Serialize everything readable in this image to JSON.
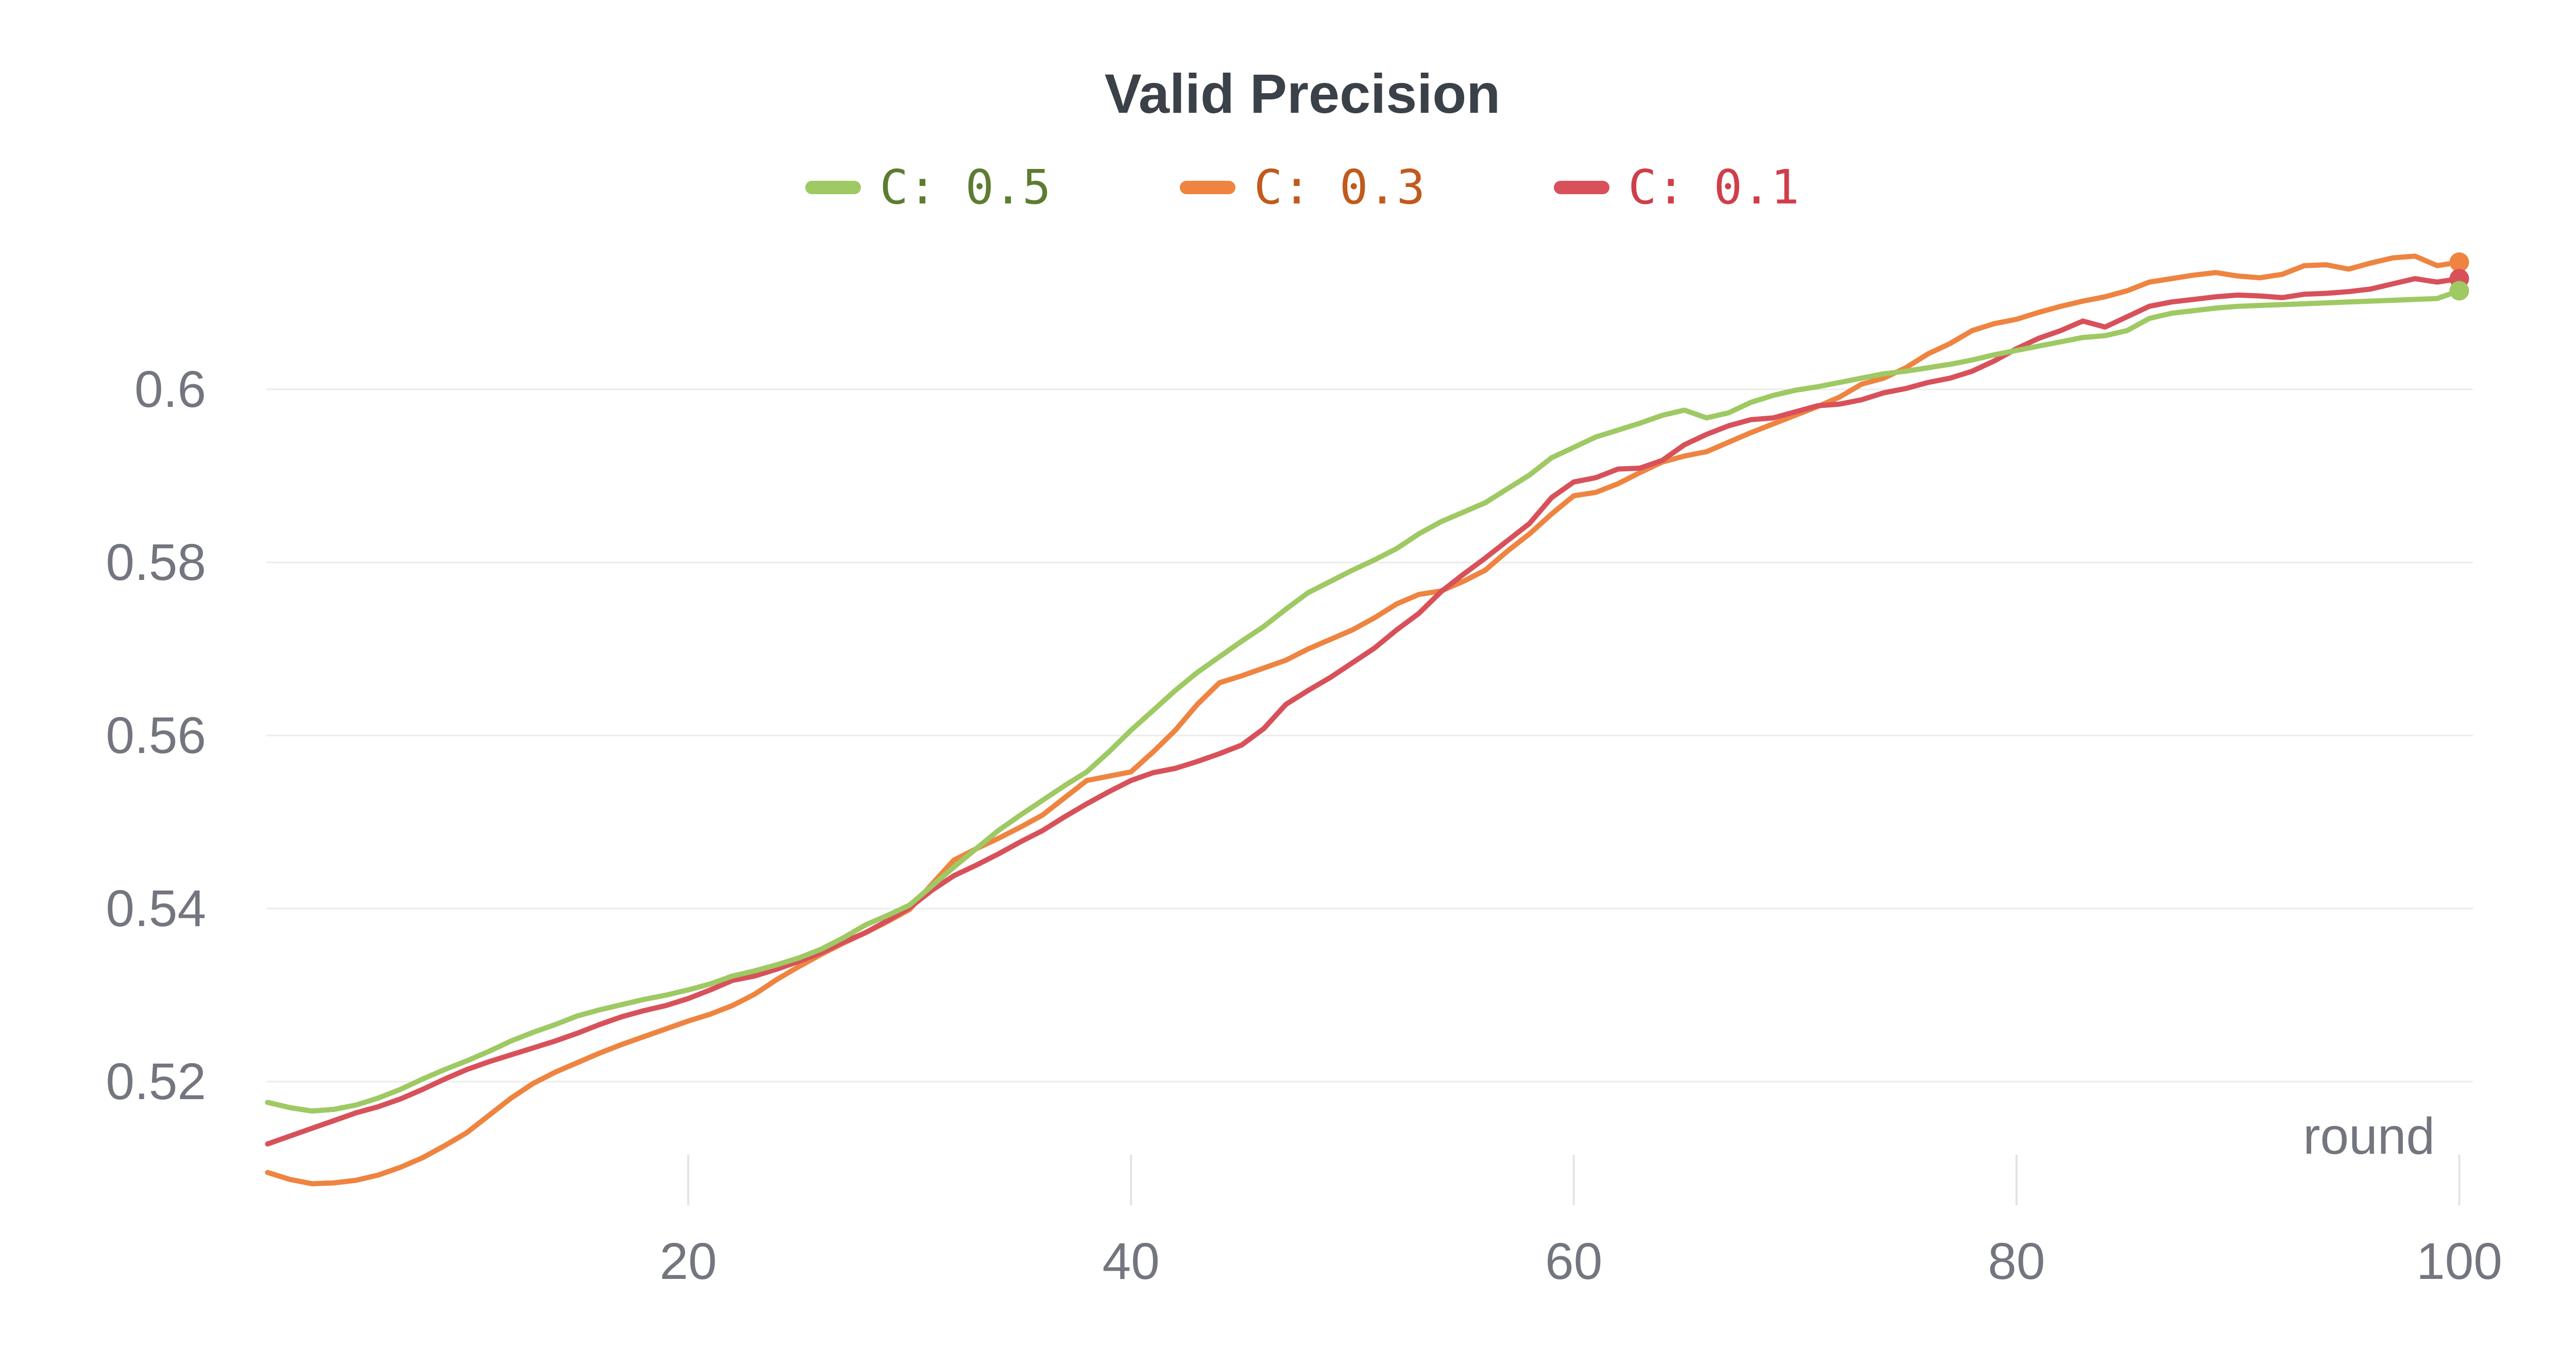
{
  "title": "Valid Precision",
  "colors": {
    "background": "#ffffff",
    "title_text": "#3b4148",
    "axis_text": "#73767f",
    "gridline": "#ececec",
    "tick_mark": "#e3e3e3"
  },
  "chart_data": {
    "type": "line",
    "title": "Valid Precision",
    "xlabel": "round",
    "ylabel": "",
    "grid": "horizontal-only",
    "legend_position": "top-center",
    "x_start": 1,
    "x_step": 1,
    "xlim": [
      1,
      100
    ],
    "ylim": [
      0.506,
      0.619
    ],
    "x_ticks": [
      20,
      40,
      60,
      80,
      100
    ],
    "y_ticks": [
      {
        "label": "0.6",
        "value": 0.6
      },
      {
        "label": "0.58",
        "value": 0.58
      },
      {
        "label": "0.56",
        "value": 0.56
      },
      {
        "label": "0.54",
        "value": 0.54
      },
      {
        "label": "0.52",
        "value": 0.52
      }
    ],
    "end_point_dot": true,
    "series": [
      {
        "name": "C: 0.5",
        "line_color": "#9ec963",
        "label_color": "#5d7c31",
        "values": [
          0.5176,
          0.517,
          0.5166,
          0.5168,
          0.5173,
          0.5181,
          0.5191,
          0.5203,
          0.5214,
          0.5224,
          0.5235,
          0.5247,
          0.5257,
          0.5266,
          0.5276,
          0.5283,
          0.5289,
          0.5295,
          0.53,
          0.5306,
          0.5313,
          0.5322,
          0.5328,
          0.5335,
          0.5343,
          0.5353,
          0.5366,
          0.5381,
          0.5392,
          0.5404,
          0.5426,
          0.5448,
          0.5469,
          0.549,
          0.5508,
          0.5525,
          0.5542,
          0.5558,
          0.5581,
          0.5606,
          0.5629,
          0.5652,
          0.5673,
          0.5691,
          0.5709,
          0.5726,
          0.5746,
          0.5765,
          0.5778,
          0.5791,
          0.5803,
          0.5816,
          0.5833,
          0.5847,
          0.5858,
          0.5869,
          0.5885,
          0.5901,
          0.5921,
          0.5933,
          0.5945,
          0.5953,
          0.5961,
          0.597,
          0.5976,
          0.5967,
          0.5973,
          0.5985,
          0.5993,
          0.5999,
          0.6003,
          0.6008,
          0.6013,
          0.6018,
          0.6021,
          0.6025,
          0.6029,
          0.6034,
          0.604,
          0.6045,
          0.605,
          0.6055,
          0.606,
          0.6062,
          0.6068,
          0.6082,
          0.6088,
          0.6091,
          0.6094,
          0.6096,
          0.6097,
          0.6098,
          0.6099,
          0.61,
          0.6101,
          0.6102,
          0.6103,
          0.6104,
          0.6105,
          0.6114
        ]
      },
      {
        "name": "C: 0.3",
        "line_color": "#ee8440",
        "label_color": "#c05a1d",
        "values": [
          0.5095,
          0.5087,
          0.5082,
          0.5083,
          0.5086,
          0.5092,
          0.5101,
          0.5112,
          0.5126,
          0.5141,
          0.5161,
          0.5181,
          0.5198,
          0.5211,
          0.5222,
          0.5233,
          0.5243,
          0.5252,
          0.5261,
          0.527,
          0.5278,
          0.5288,
          0.5301,
          0.5318,
          0.5333,
          0.5347,
          0.536,
          0.5372,
          0.5385,
          0.5399,
          0.5428,
          0.5456,
          0.5469,
          0.5481,
          0.5494,
          0.5508,
          0.5528,
          0.5548,
          0.5553,
          0.5558,
          0.5581,
          0.5606,
          0.5636,
          0.5661,
          0.5669,
          0.5678,
          0.5687,
          0.57,
          0.5711,
          0.5722,
          0.5736,
          0.5752,
          0.5763,
          0.5767,
          0.5778,
          0.5791,
          0.5813,
          0.5833,
          0.5856,
          0.5877,
          0.5881,
          0.5891,
          0.5904,
          0.5916,
          0.5923,
          0.5928,
          0.5939,
          0.595,
          0.596,
          0.597,
          0.598,
          0.5991,
          0.6006,
          0.6013,
          0.6025,
          0.6041,
          0.6053,
          0.6068,
          0.6076,
          0.6081,
          0.6089,
          0.6096,
          0.6102,
          0.6107,
          0.6114,
          0.6124,
          0.6128,
          0.6132,
          0.6135,
          0.6131,
          0.6129,
          0.6133,
          0.6143,
          0.6144,
          0.6139,
          0.6146,
          0.6152,
          0.6154,
          0.6143,
          0.6147
        ]
      },
      {
        "name": "C: 0.1",
        "line_color": "#d8515a",
        "label_color": "#cf3e4b",
        "values": [
          0.5128,
          0.5137,
          0.5146,
          0.5155,
          0.5164,
          0.5171,
          0.518,
          0.5191,
          0.5203,
          0.5214,
          0.5223,
          0.5231,
          0.5239,
          0.5247,
          0.5256,
          0.5266,
          0.5275,
          0.5282,
          0.5288,
          0.5296,
          0.5306,
          0.5317,
          0.5322,
          0.533,
          0.5339,
          0.5349,
          0.5361,
          0.5372,
          0.5386,
          0.5401,
          0.5421,
          0.5438,
          0.545,
          0.5463,
          0.5477,
          0.549,
          0.5506,
          0.5521,
          0.5535,
          0.5548,
          0.5557,
          0.5562,
          0.557,
          0.5579,
          0.5589,
          0.5608,
          0.5636,
          0.5652,
          0.5667,
          0.5684,
          0.5701,
          0.5722,
          0.5741,
          0.5766,
          0.5786,
          0.5805,
          0.5825,
          0.5845,
          0.5875,
          0.5893,
          0.5898,
          0.5908,
          0.5909,
          0.5918,
          0.5936,
          0.5948,
          0.5958,
          0.5965,
          0.5967,
          0.5974,
          0.5981,
          0.5983,
          0.5988,
          0.5996,
          0.6001,
          0.6008,
          0.6013,
          0.6021,
          0.6033,
          0.6047,
          0.6059,
          0.6068,
          0.6079,
          0.6072,
          0.6084,
          0.6096,
          0.6101,
          0.6104,
          0.6107,
          0.6109,
          0.6108,
          0.6106,
          0.611,
          0.6111,
          0.6113,
          0.6116,
          0.6122,
          0.6128,
          0.6124,
          0.6128
        ]
      }
    ]
  }
}
